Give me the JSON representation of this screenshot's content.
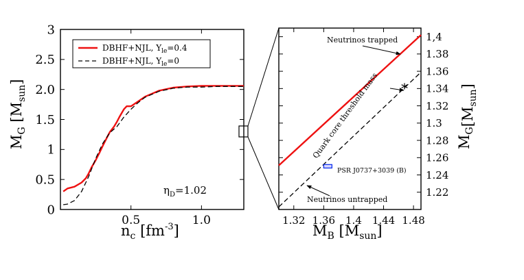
{
  "chart_data": [
    {
      "type": "line",
      "panel": "left",
      "xlabel": "n",
      "xlabel_sub": "c",
      "xlabel_unit": "[fm",
      "xlabel_sup": "-3",
      "xlabel_close": "]",
      "ylabel": "M",
      "ylabel_sub": "G",
      "ylabel_unit": "[M",
      "ylabel_unit_sub": "sun",
      "ylabel_close": "]",
      "xlim": [
        0.0,
        1.3
      ],
      "ylim": [
        0,
        3
      ],
      "x_ticks": [
        0.5,
        1.0
      ],
      "x_tick_labels": [
        "0.5",
        "1.0"
      ],
      "y_ticks": [
        0,
        0.5,
        1,
        1.5,
        2,
        2.5,
        3
      ],
      "y_tick_labels": [
        "0",
        "0.5",
        "1",
        "1.5",
        "2.0",
        "2.5",
        "3"
      ],
      "annotation": {
        "text": "η",
        "sub": "D",
        "value": "=1.02"
      },
      "legend": {
        "placement": "top-left",
        "entries": [
          {
            "label": "DBHF+NJL, Y",
            "sub": "le",
            "value": "=0.4",
            "color": "#ee1111",
            "style": "solid"
          },
          {
            "label": "DBHF+NJL, Y",
            "sub": "le",
            "value": "=0",
            "color": "#000000",
            "style": "dashed"
          }
        ]
      },
      "series": [
        {
          "name": "DBHF+NJL, Yle=0.4",
          "color": "#ee1111",
          "style": "solid",
          "x": [
            0.02,
            0.05,
            0.1,
            0.15,
            0.18,
            0.2,
            0.22,
            0.25,
            0.28,
            0.3,
            0.33,
            0.35,
            0.38,
            0.4,
            0.42,
            0.45,
            0.47,
            0.5,
            0.55,
            0.6,
            0.7,
            0.8,
            0.9,
            1.0,
            1.1,
            1.2,
            1.3
          ],
          "y": [
            0.3,
            0.35,
            0.38,
            0.45,
            0.52,
            0.6,
            0.7,
            0.82,
            0.96,
            1.06,
            1.2,
            1.29,
            1.38,
            1.46,
            1.55,
            1.67,
            1.72,
            1.72,
            1.8,
            1.88,
            1.98,
            2.03,
            2.05,
            2.06,
            2.06,
            2.06,
            2.06
          ]
        },
        {
          "name": "DBHF+NJL, Yle=0",
          "color": "#000000",
          "style": "dashed",
          "x": [
            0.02,
            0.05,
            0.1,
            0.15,
            0.2,
            0.25,
            0.3,
            0.35,
            0.4,
            0.45,
            0.5,
            0.55,
            0.6,
            0.7,
            0.8,
            0.9,
            1.0,
            1.1,
            1.2,
            1.3
          ],
          "y": [
            0.08,
            0.09,
            0.15,
            0.3,
            0.55,
            0.85,
            1.1,
            1.28,
            1.38,
            1.54,
            1.67,
            1.78,
            1.87,
            1.97,
            2.02,
            2.04,
            2.04,
            2.05,
            2.05,
            2.05
          ]
        }
      ]
    },
    {
      "type": "line",
      "panel": "right",
      "xlabel": "M",
      "xlabel_sub": "B",
      "xlabel_unit": "[M",
      "xlabel_unit_sub": "sun",
      "xlabel_close": "]",
      "ylabel": "M",
      "ylabel_sub": "G",
      "ylabel_unit": "[M",
      "ylabel_unit_sub": "sun",
      "ylabel_close": "]",
      "xlim": [
        1.3,
        1.49
      ],
      "ylim": [
        1.2,
        1.41
      ],
      "x_ticks": [
        1.32,
        1.36,
        1.4,
        1.44,
        1.48
      ],
      "x_tick_labels": [
        "1.32",
        "1.36",
        "1.4",
        "1.44",
        "1.48"
      ],
      "y_ticks": [
        1.22,
        1.24,
        1.26,
        1.28,
        1.3,
        1.32,
        1.34,
        1.36,
        1.38,
        1.4
      ],
      "y_tick_labels": [
        "1.22",
        "1.24",
        "1.26",
        "1.28",
        "1.3",
        "1.32",
        "1.34",
        "1.36",
        "1.38",
        "1,4"
      ],
      "series": [
        {
          "name": "Neutrinos trapped",
          "color": "#ee1111",
          "style": "solid",
          "x": [
            1.3,
            1.49
          ],
          "y": [
            1.251,
            1.402
          ]
        },
        {
          "name": "Neutrinos untrapped",
          "color": "#000000",
          "style": "dashed",
          "x": [
            1.3,
            1.49
          ],
          "y": [
            1.203,
            1.359
          ]
        }
      ],
      "threshold_marker": {
        "x": 1.468,
        "y": 1.341,
        "symbol": "*"
      },
      "pulsar_box": {
        "x0": 1.36,
        "x1": 1.371,
        "y0": 1.248,
        "y1": 1.252,
        "color": "#1133ee"
      },
      "annotations": {
        "trapped": "Neutrinos trapped",
        "untrapped": "Neutrinos untrapped",
        "threshold": "Quark core threshold mass",
        "pulsar": "PSR J0737+3039 (B)"
      }
    }
  ]
}
